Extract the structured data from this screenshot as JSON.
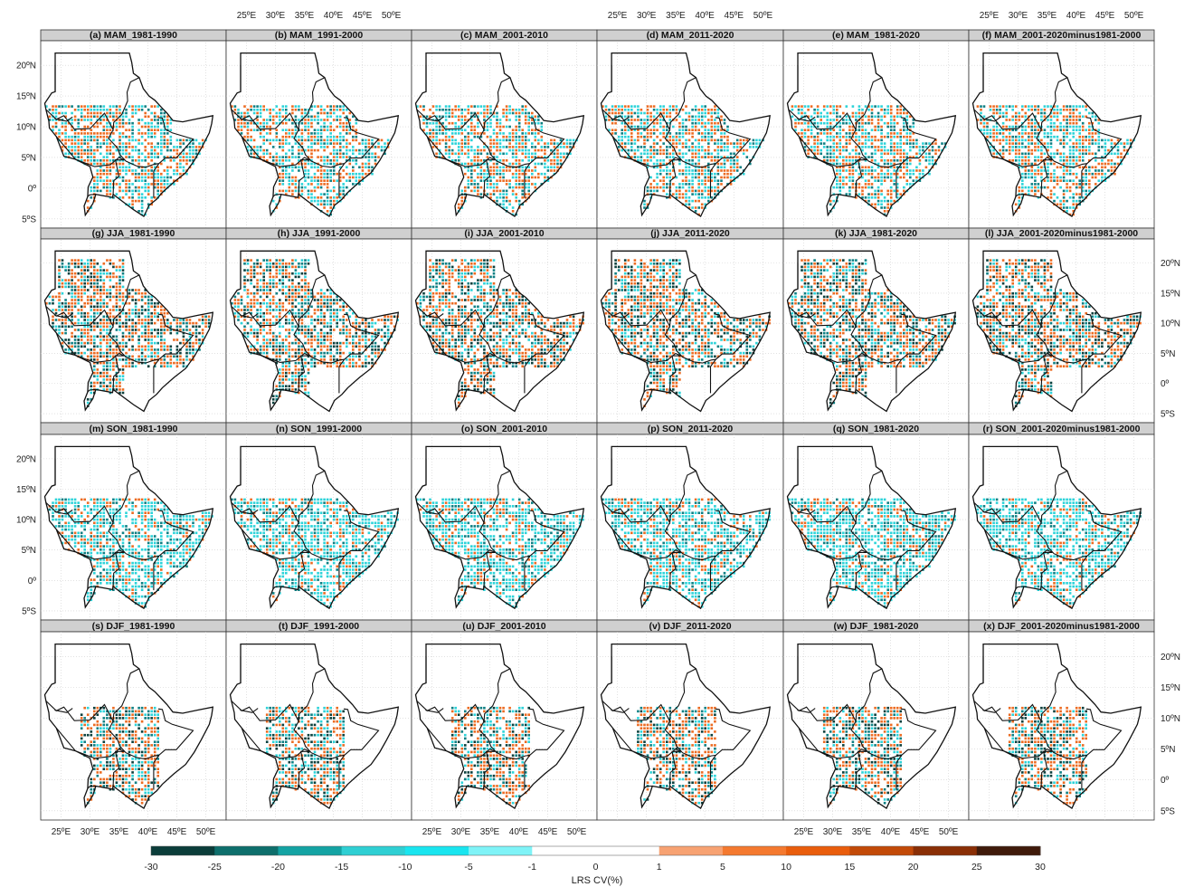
{
  "panels": [
    {
      "id": "a",
      "title": "(a)  MAM_1981-1990"
    },
    {
      "id": "b",
      "title": "(b)  MAM_1991-2000"
    },
    {
      "id": "c",
      "title": "(c)  MAM_2001-2010"
    },
    {
      "id": "d",
      "title": "(d)  MAM_2011-2020"
    },
    {
      "id": "e",
      "title": "(e)  MAM_1981-2020"
    },
    {
      "id": "f",
      "title": "(f)  MAM_2001-2020minus1981-2000"
    },
    {
      "id": "g",
      "title": "(g)  JJA_1981-1990"
    },
    {
      "id": "h",
      "title": "(h)  JJA_1991-2000"
    },
    {
      "id": "i",
      "title": "(i)  JJA_2001-2010"
    },
    {
      "id": "j",
      "title": "(j)  JJA_2011-2020"
    },
    {
      "id": "k",
      "title": "(k)  JJA_1981-2020"
    },
    {
      "id": "l",
      "title": "(l)  JJA_2001-2020minus1981-2000"
    },
    {
      "id": "m",
      "title": "(m)  SON_1981-1990"
    },
    {
      "id": "n",
      "title": "(n)  SON_1991-2000"
    },
    {
      "id": "o",
      "title": "(o)  SON_2001-2010"
    },
    {
      "id": "p",
      "title": "(p)  SON_2011-2020"
    },
    {
      "id": "q",
      "title": "(q)  SON_1981-2020"
    },
    {
      "id": "r",
      "title": "(r)  SON_2001-2020minus1981-2000"
    },
    {
      "id": "s",
      "title": "(s)  DJF_1981-1990"
    },
    {
      "id": "t",
      "title": "(t)  DJF_1991-2000"
    },
    {
      "id": "u",
      "title": "(u)  DJF_2001-2010"
    },
    {
      "id": "v",
      "title": "(v)  DJF_2011-2020"
    },
    {
      "id": "w",
      "title": "(w)  DJF_1981-2020"
    },
    {
      "id": "x",
      "title": "(x)  DJF_2001-2020minus1981-2000"
    }
  ],
  "axes": {
    "lon_ticks": [
      "25ºE",
      "30ºE",
      "35ºE",
      "40ºE",
      "45ºE",
      "50ºE"
    ],
    "lat_ticks": [
      "20ºN",
      "15ºN",
      "10ºN",
      "5ºN",
      "0º",
      "5ºS"
    ]
  },
  "colorbar": {
    "title": "LRS  CV(%)",
    "tick_labels": [
      "-30",
      "-25",
      "-20",
      "-15",
      "-10",
      "-5",
      "-1",
      "0",
      "1",
      "5",
      "10",
      "15",
      "20",
      "25",
      "30"
    ],
    "colors": [
      "#0b3d3a",
      "#0e6f6c",
      "#14a3a3",
      "#2fcfd3",
      "#19e5ef",
      "#7ff3f7",
      "#ffffff",
      "#ffffff",
      "#f7a272",
      "#f4792f",
      "#e95d0c",
      "#c24a08",
      "#8a2f06",
      "#3f1a0a"
    ]
  },
  "colors": {
    "panel_header": "#d0d0d0",
    "frame": "#333333",
    "grid": "#cfcfcf",
    "outline": "#111111",
    "orange": "#ec6b22",
    "cyan": "#2cd3d9",
    "teal": "#0d7f83",
    "dark": "#0a3f3c"
  }
}
